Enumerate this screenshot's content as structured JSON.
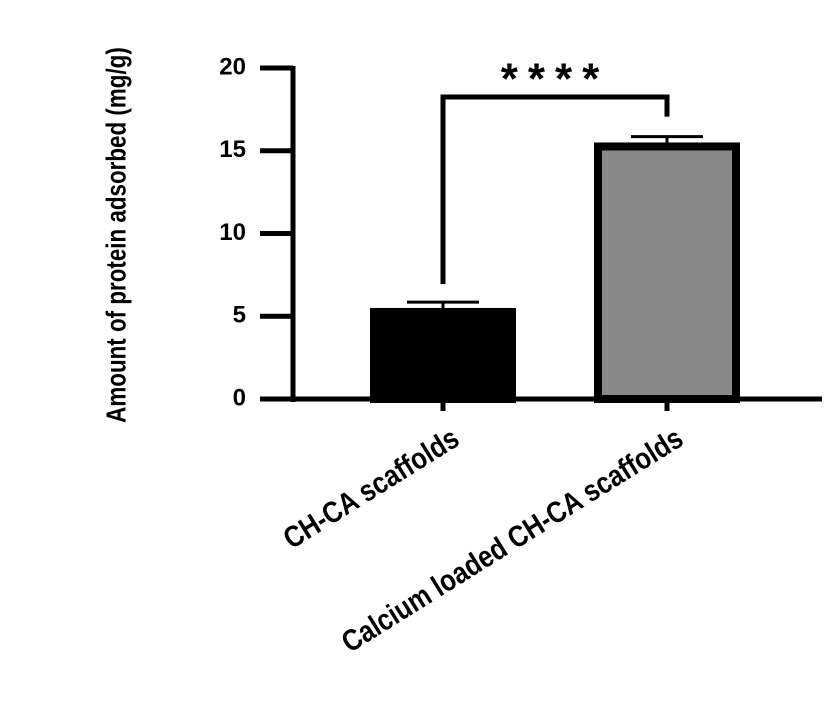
{
  "chart_data": {
    "type": "bar",
    "y_label": "Amount of protein adsorbed (mg/g)",
    "categories": [
      "CH-CA scaffolds",
      "Calcium loaded CH-CA scaffolds"
    ],
    "values": [
      5.5,
      15.5
    ],
    "errors": [
      0.35,
      0.35
    ],
    "colors": [
      "#000000",
      "#888888"
    ],
    "ylim": [
      0,
      20
    ],
    "yticks": [
      0,
      5,
      10,
      15,
      20
    ],
    "annotation": "****"
  }
}
